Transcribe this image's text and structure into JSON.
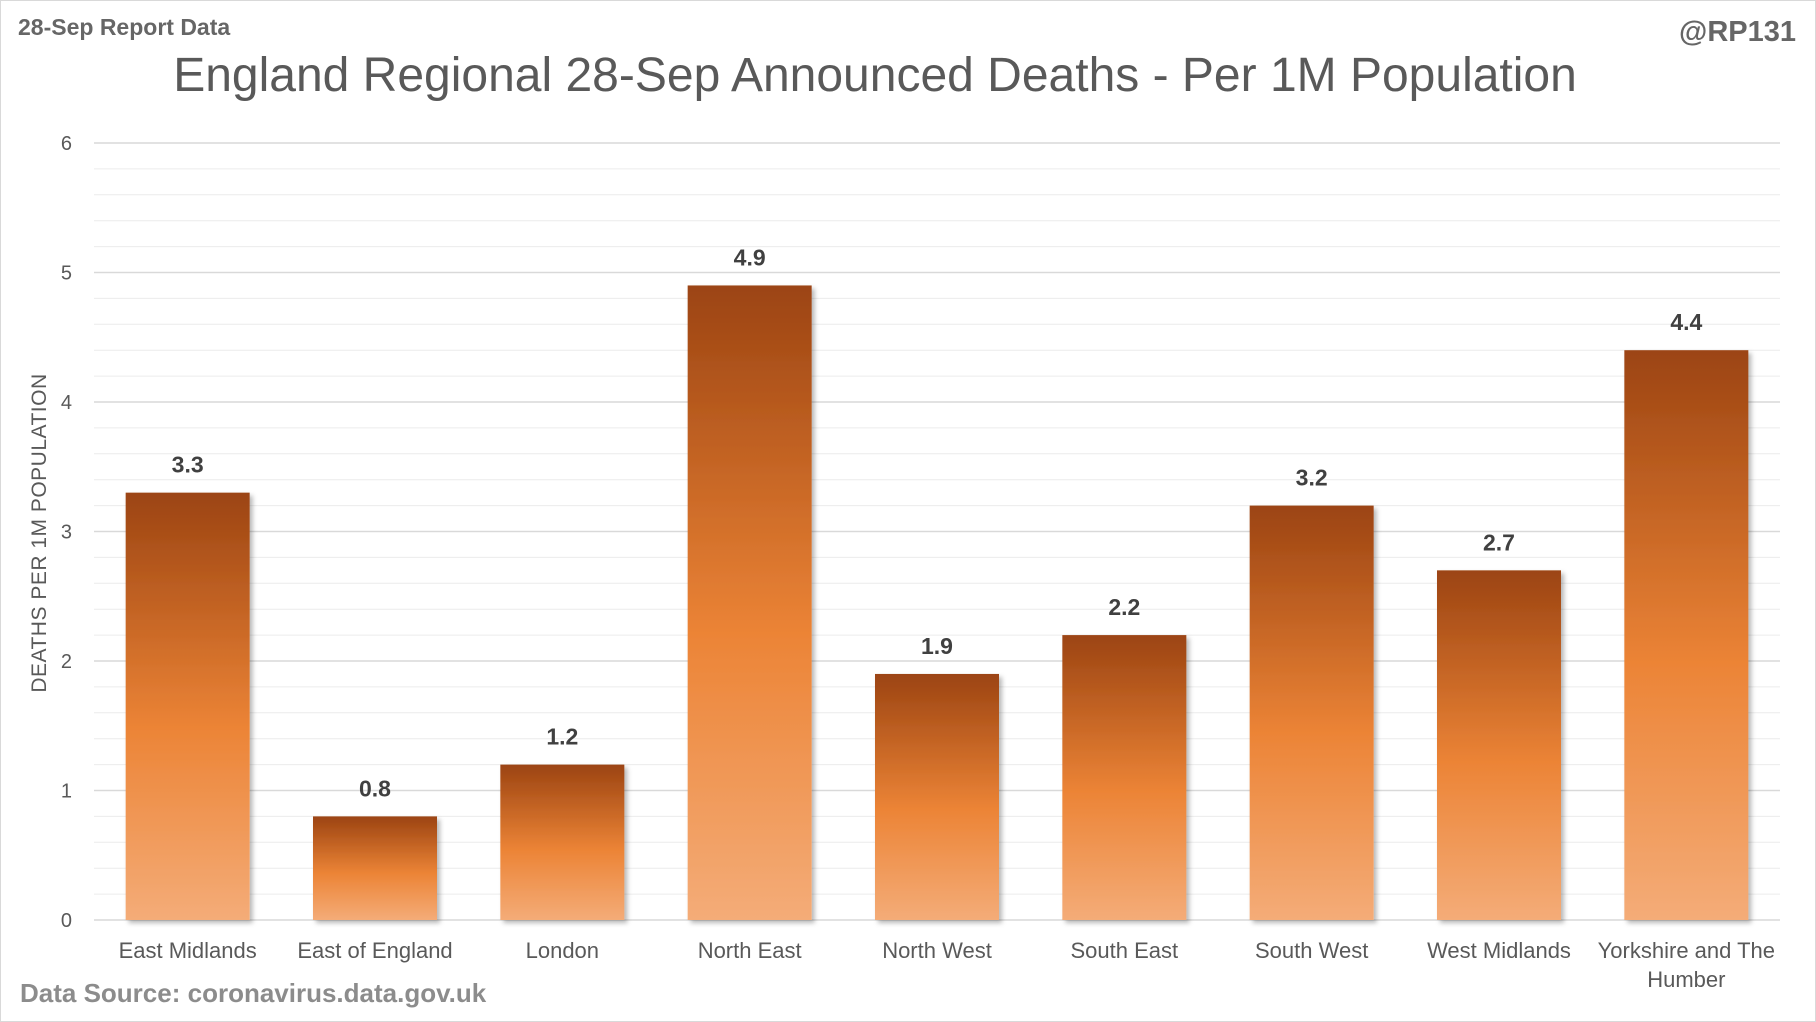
{
  "corner_left": "28-Sep Report Data",
  "corner_right": "@RP131",
  "source": "Data Source: coronavirus.data.gov.uk",
  "colors": {
    "bar_dark": "#9c4412",
    "bar_mid": "#ec8436",
    "bar_light": "#f4ac78",
    "grid_major": "#d9d9d9",
    "grid_minor": "#ececec"
  },
  "chart_data": {
    "type": "bar",
    "title": "England Regional 28-Sep Announced Deaths - Per 1M Population",
    "xlabel": "",
    "ylabel": "DEATHS PER 1M POPULATION",
    "ylim": [
      0,
      6
    ],
    "yticks": [
      "0",
      "1",
      "2",
      "3",
      "4",
      "5",
      "6"
    ],
    "grid": true,
    "legend": "none",
    "categories": [
      [
        "East Midlands"
      ],
      [
        "East of England"
      ],
      [
        "London"
      ],
      [
        "North East"
      ],
      [
        "North West"
      ],
      [
        "South East"
      ],
      [
        "South West"
      ],
      [
        "West Midlands"
      ],
      [
        "Yorkshire and The",
        "Humber"
      ]
    ],
    "values": [
      3.3,
      0.8,
      1.2,
      4.9,
      1.9,
      2.2,
      3.2,
      2.7,
      4.4
    ],
    "data_labels": [
      "3.3",
      "0.8",
      "1.2",
      "4.9",
      "1.9",
      "2.2",
      "3.2",
      "2.7",
      "4.4"
    ]
  }
}
